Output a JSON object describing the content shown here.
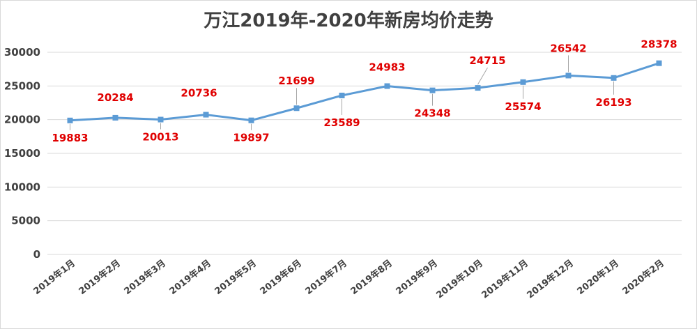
{
  "chart_data": {
    "type": "line",
    "title": "万江2019年-2020年新房均价走势",
    "xlabel": "",
    "ylabel": "",
    "ylim": [
      0,
      30000
    ],
    "yticks": [
      0,
      5000,
      10000,
      15000,
      20000,
      25000,
      30000
    ],
    "grid": true,
    "legend": "none",
    "categories": [
      "2019年1月",
      "2019年2月",
      "2019年3月",
      "2019年4月",
      "2019年5月",
      "2019年6月",
      "2019年7月",
      "2019年8月",
      "2019年9月",
      "2019年10月",
      "2019年11月",
      "2019年12月",
      "2020年1月",
      "2020年2月"
    ],
    "series": [
      {
        "values": [
          19883,
          20284,
          20013,
          20736,
          19897,
          21699,
          23589,
          24983,
          24348,
          24715,
          25574,
          26542,
          26193,
          28378
        ],
        "color": "#5b9bd5",
        "label_color": "#e00000"
      }
    ]
  }
}
